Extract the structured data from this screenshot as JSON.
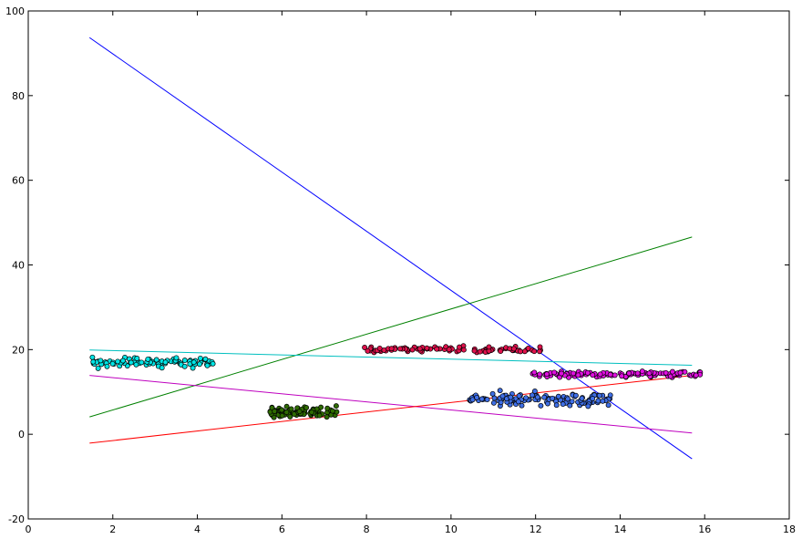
{
  "chart_data": {
    "type": "scatter",
    "title": "",
    "xlabel": "",
    "ylabel": "",
    "xlim": [
      0,
      18
    ],
    "ylim": [
      -20,
      100
    ],
    "x_ticks": [
      0,
      2,
      4,
      6,
      8,
      10,
      12,
      14,
      16,
      18
    ],
    "y_ticks": [
      -20,
      0,
      20,
      40,
      60,
      80,
      100
    ],
    "grid": false,
    "legend": "none",
    "lines": [
      {
        "color": "#0000ff",
        "x": [
          1.45,
          15.7
        ],
        "y": [
          93.7,
          -5.8
        ]
      },
      {
        "color": "#008000",
        "x": [
          1.45,
          15.7
        ],
        "y": [
          4.1,
          46.6
        ]
      },
      {
        "color": "#00bfbf",
        "x": [
          1.45,
          15.7
        ],
        "y": [
          19.9,
          16.3
        ]
      },
      {
        "color": "#bf00bf",
        "x": [
          1.45,
          15.7
        ],
        "y": [
          13.9,
          0.3
        ]
      },
      {
        "color": "#ff0000",
        "x": [
          1.45,
          15.7
        ],
        "y": [
          -2.1,
          13.9
        ]
      }
    ],
    "scatter_clusters": [
      {
        "color": "#00e5e5",
        "x_range": [
          1.45,
          4.4
        ],
        "y_center": 17.0,
        "y_spread": 1.0,
        "count": 85,
        "seed": 11
      },
      {
        "color": "#2e6b00",
        "x_range": [
          5.7,
          7.3
        ],
        "y_center": 5.3,
        "y_spread": 1.2,
        "count": 90,
        "seed": 23
      },
      {
        "color": "#e0124c",
        "x_range": [
          7.9,
          12.2
        ],
        "y_center": 20.0,
        "y_spread": 0.6,
        "count": 95,
        "seed": 37
      },
      {
        "color": "#3f6fe6",
        "x_range": [
          10.4,
          13.8
        ],
        "y_center": 8.3,
        "y_spread": 1.4,
        "count": 120,
        "seed": 41
      },
      {
        "color": "#e010e0",
        "x_range": [
          11.9,
          15.9
        ],
        "y_center": 14.2,
        "y_spread": 0.7,
        "count": 110,
        "seed": 53
      }
    ]
  }
}
